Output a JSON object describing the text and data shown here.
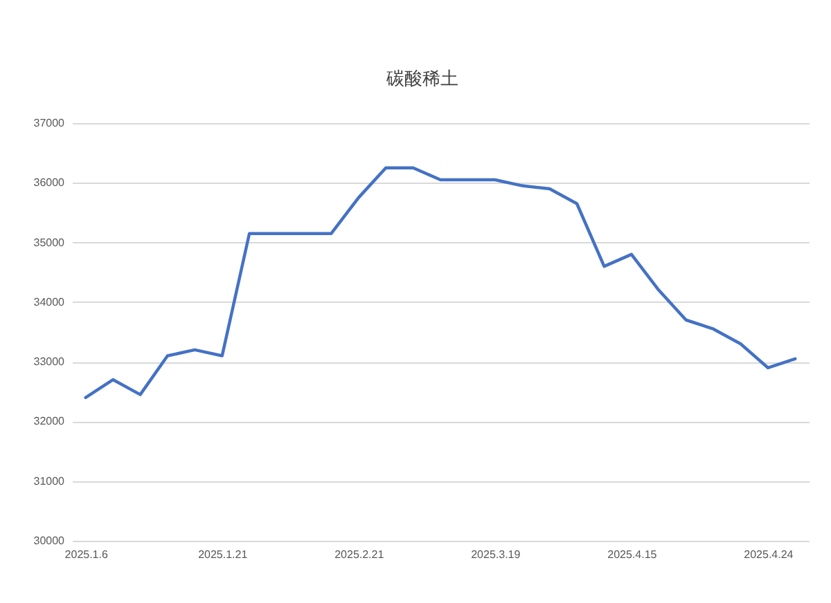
{
  "chart_data": {
    "type": "line",
    "title": "碳酸稀土",
    "categories": [
      "2025.1.6",
      null,
      null,
      null,
      null,
      "2025.1.21",
      null,
      null,
      null,
      null,
      "2025.2.21",
      null,
      null,
      null,
      null,
      "2025.3.19",
      null,
      null,
      null,
      null,
      "2025.4.15",
      null,
      null,
      null,
      null,
      "2025.4.24",
      null
    ],
    "series": [
      {
        "color": "#4472c4",
        "values": [
          32400,
          32700,
          32450,
          33100,
          33200,
          33100,
          35150,
          35150,
          35150,
          35150,
          35750,
          36250,
          36250,
          36050,
          36050,
          36050,
          35950,
          35900,
          35650,
          34600,
          34800,
          34200,
          33700,
          33550,
          33300,
          32900,
          33050
        ]
      }
    ],
    "ylim": [
      30000,
      37000
    ],
    "yticks": [
      30000,
      31000,
      32000,
      33000,
      34000,
      35000,
      36000,
      37000
    ],
    "grid": "y"
  }
}
